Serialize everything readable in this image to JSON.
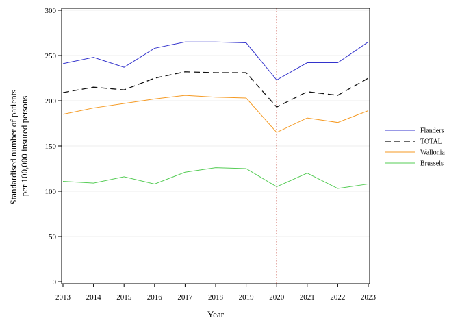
{
  "chart_data": {
    "type": "line",
    "xlabel": "Year",
    "ylabel_lines": [
      "Standardised number of patients",
      "per 100,000 insured persons"
    ],
    "x": [
      2013,
      2014,
      2015,
      2016,
      2017,
      2018,
      2019,
      2020,
      2021,
      2022,
      2023
    ],
    "xlim": [
      2013,
      2023
    ],
    "ylim": [
      0,
      300
    ],
    "yticks": [
      0,
      50,
      100,
      150,
      200,
      250,
      300
    ],
    "grid": "horizontal",
    "legend_position": "right",
    "reference_line": {
      "x": 2020,
      "style": "dotted",
      "color": "#c0392b"
    },
    "series": [
      {
        "name": "Flanders",
        "color": "#3333cc",
        "dash": "solid",
        "values": [
          241,
          248,
          237,
          258,
          265,
          265,
          264,
          223,
          242,
          242,
          265
        ]
      },
      {
        "name": "TOTAL",
        "color": "#111111",
        "dash": "dashed",
        "values": [
          209,
          215,
          212,
          225,
          232,
          231,
          231,
          193,
          210,
          206,
          225
        ]
      },
      {
        "name": "Wallonia",
        "color": "#f59a23",
        "dash": "solid",
        "values": [
          185,
          192,
          197,
          202,
          206,
          204,
          203,
          165,
          181,
          176,
          189
        ]
      },
      {
        "name": "Brussels",
        "color": "#55cc55",
        "dash": "solid",
        "values": [
          111,
          109,
          116,
          108,
          121,
          126,
          125,
          105,
          120,
          103,
          108
        ]
      }
    ]
  }
}
